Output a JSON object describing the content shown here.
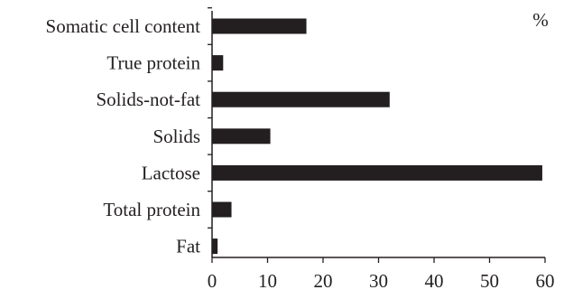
{
  "chart_data": {
    "type": "bar",
    "orientation": "horizontal",
    "categories": [
      "Somatic cell content",
      "True protein",
      "Solids-not-fat",
      "Solids",
      "Lactose",
      "Total protein",
      "Fat"
    ],
    "values": [
      17,
      2,
      32,
      10.5,
      59.5,
      3.5,
      1
    ],
    "unit_label": "%",
    "xlim": [
      0,
      60
    ],
    "xticks": [
      0,
      10,
      20,
      30,
      40,
      50,
      60
    ],
    "xticks_labels": [
      "0",
      "10",
      "20",
      "30",
      "40",
      "50",
      "60"
    ],
    "bar_color": "#231f20",
    "grid": false,
    "legend": "none"
  }
}
